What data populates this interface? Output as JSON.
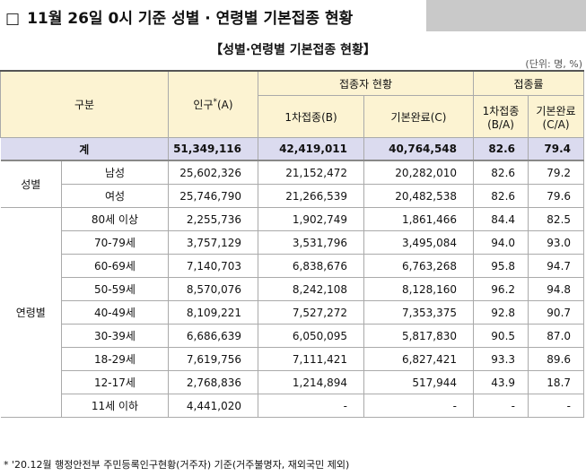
{
  "heading": {
    "marker": "□",
    "title": "11월 26일 0시 기준 성별 · 연령별 기본접종 현황"
  },
  "subtitle": "【성별·연령별 기본접종 현황】",
  "unit": "(단위: 명, %)",
  "table": {
    "header": {
      "category": "구분",
      "population": "인구",
      "population_mark": "*",
      "population_unit": "(A)",
      "vaccinated": "접종자 현황",
      "first": "1차접종(B)",
      "complete": "기본완료(C)",
      "rate": "접종률",
      "first_rate": {
        "line1": "1차접종",
        "line2": "(B/A)"
      },
      "complete_rate": {
        "line1": "기본완료",
        "line2": "(C/A)"
      }
    },
    "total": {
      "label": "계",
      "cells": [
        "51,349,116",
        "42,419,011",
        "40,764,548",
        "82.6",
        "79.4"
      ]
    },
    "groups": [
      {
        "label": "성별",
        "rows": [
          {
            "label": "남성",
            "cells": [
              "25,602,326",
              "21,152,472",
              "20,282,010",
              "82.6",
              "79.2"
            ]
          },
          {
            "label": "여성",
            "cells": [
              "25,746,790",
              "21,266,539",
              "20,482,538",
              "82.6",
              "79.6"
            ]
          }
        ]
      },
      {
        "label": "연령별",
        "rows": [
          {
            "label": "80세 이상",
            "cells": [
              "2,255,736",
              "1,902,749",
              "1,861,466",
              "84.4",
              "82.5"
            ]
          },
          {
            "label": "70-79세",
            "cells": [
              "3,757,129",
              "3,531,796",
              "3,495,084",
              "94.0",
              "93.0"
            ]
          },
          {
            "label": "60-69세",
            "cells": [
              "7,140,703",
              "6,838,676",
              "6,763,268",
              "95.8",
              "94.7"
            ]
          },
          {
            "label": "50-59세",
            "cells": [
              "8,570,076",
              "8,242,108",
              "8,128,160",
              "96.2",
              "94.8"
            ]
          },
          {
            "label": "40-49세",
            "cells": [
              "8,109,221",
              "7,527,272",
              "7,353,375",
              "92.8",
              "90.7"
            ]
          },
          {
            "label": "30-39세",
            "cells": [
              "6,686,639",
              "6,050,095",
              "5,817,830",
              "90.5",
              "87.0"
            ]
          },
          {
            "label": "18-29세",
            "cells": [
              "7,619,756",
              "7,111,421",
              "6,827,421",
              "93.3",
              "89.6"
            ]
          },
          {
            "label": "12-17세",
            "cells": [
              "2,768,836",
              "1,214,894",
              "517,944",
              "43.9",
              "18.7"
            ]
          },
          {
            "label": "11세 이하",
            "cells": [
              "4,441,020",
              "-",
              "-",
              "-",
              "-"
            ]
          }
        ]
      }
    ]
  },
  "footnote": "* '20.12월 행정안전부 주민등록인구현황(거주자) 기준(거주불명자, 재외국민 제외)"
}
